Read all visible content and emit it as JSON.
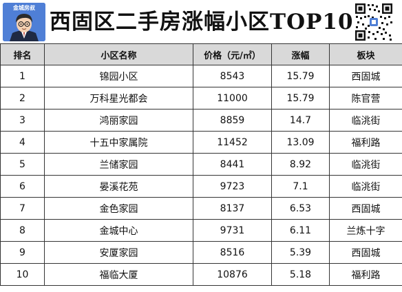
{
  "header": {
    "logo_text": "金城房叔",
    "title": "西固区二手房涨幅小区TOP10"
  },
  "table": {
    "columns": [
      "排名",
      "小区名称",
      "价格（元/㎡）",
      "涨幅",
      "板块"
    ],
    "rows": [
      [
        "1",
        "锦园小区",
        "8543",
        "15.79",
        "西固城"
      ],
      [
        "2",
        "万科星光都会",
        "11000",
        "15.79",
        "陈官营"
      ],
      [
        "3",
        "鸿丽家园",
        "8859",
        "14.7",
        "临洮街"
      ],
      [
        "4",
        "十五中家属院",
        "11452",
        "13.09",
        "福利路"
      ],
      [
        "5",
        "兰储家园",
        "8441",
        "8.92",
        "临洮街"
      ],
      [
        "6",
        "晏溪花苑",
        "9723",
        "7.1",
        "临洮街"
      ],
      [
        "7",
        "金色家园",
        "8137",
        "6.53",
        "西固城"
      ],
      [
        "8",
        "金城中心",
        "9731",
        "6.11",
        "兰炼十字"
      ],
      [
        "9",
        "安厦家园",
        "8516",
        "5.39",
        "西固城"
      ],
      [
        "10",
        "福临大厦",
        "10876",
        "5.18",
        "福利路"
      ]
    ]
  },
  "colors": {
    "header_bg": "#d9d9d9",
    "logo_bg": "#4f7fd6",
    "border": "#333333"
  },
  "icons": {
    "logo": "cartoon-avatar-icon",
    "qr": "qr-code-icon"
  }
}
